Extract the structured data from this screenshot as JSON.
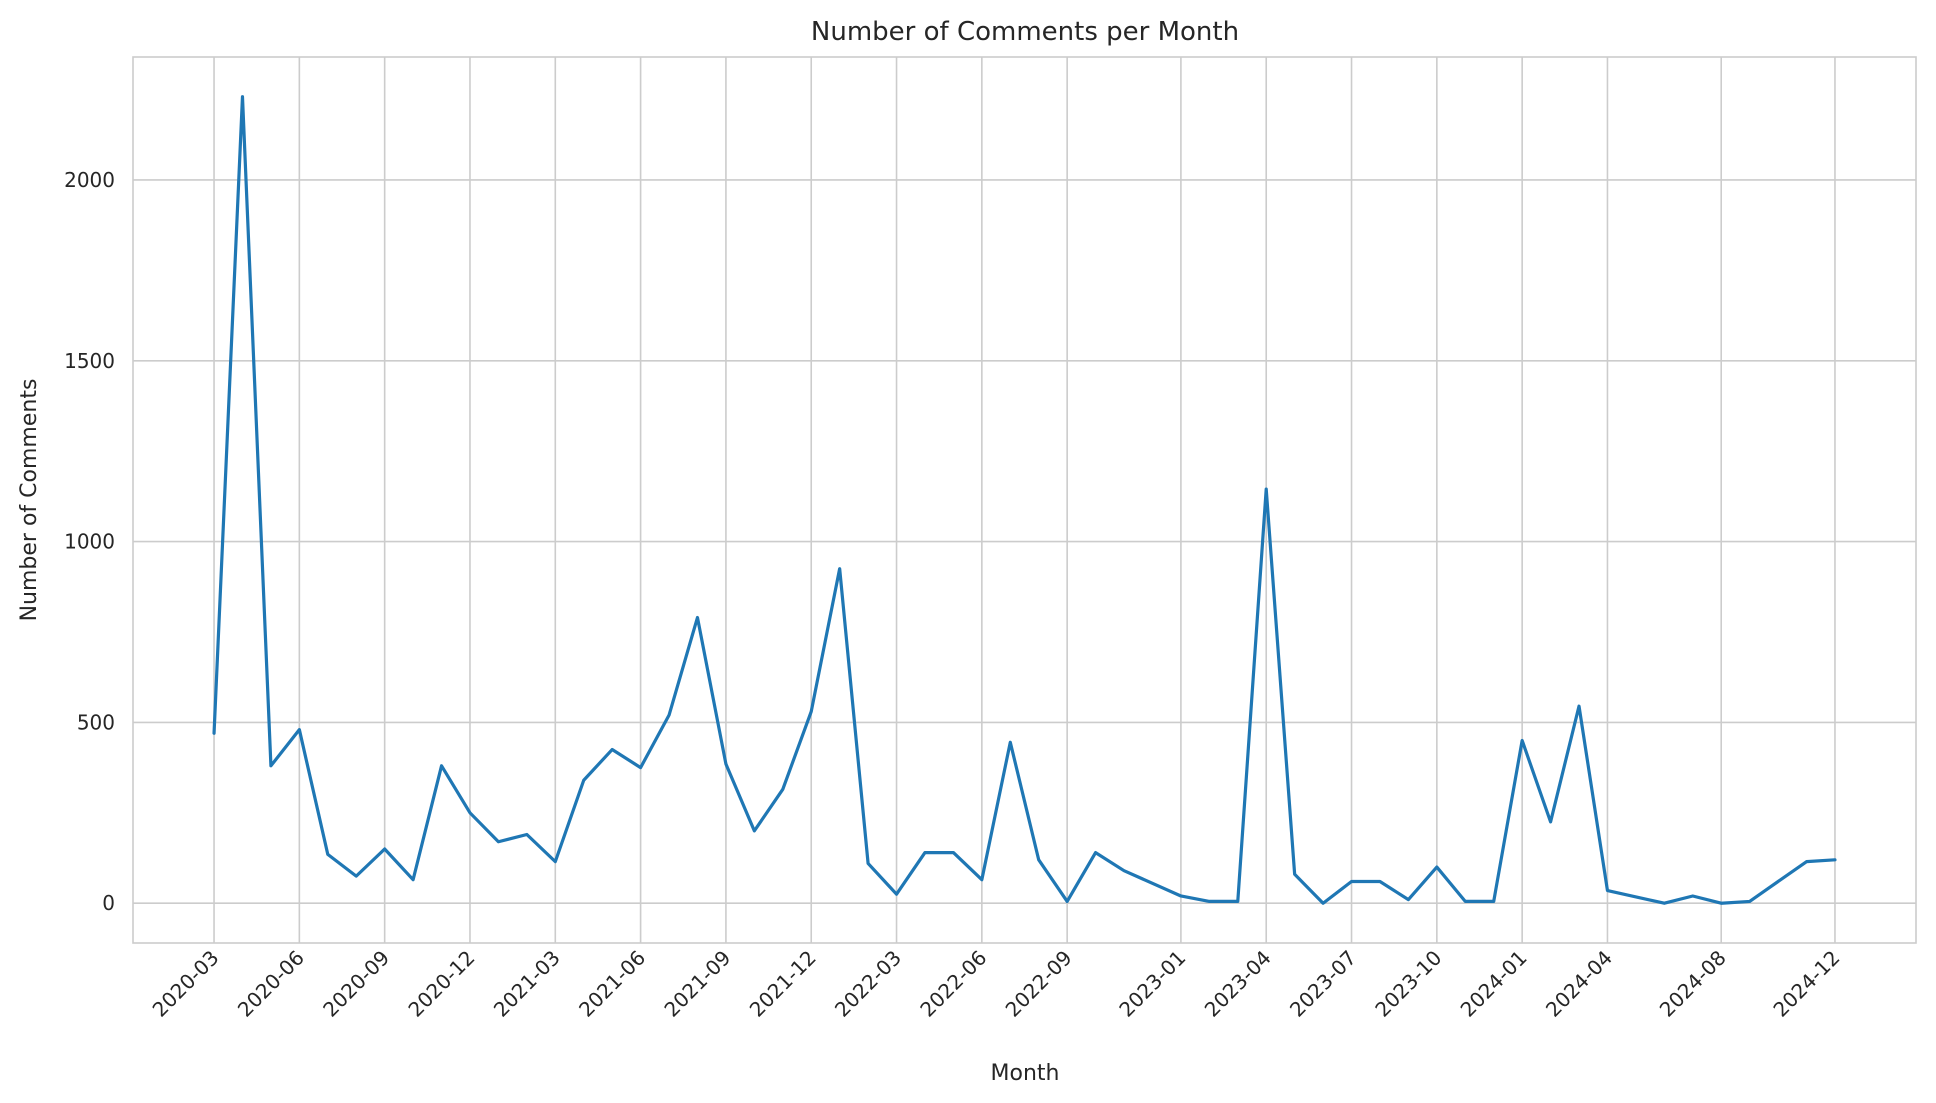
{
  "chart_data": {
    "type": "line",
    "title": "Number of Comments per Month",
    "xlabel": "Month",
    "ylabel": "Number of Comments",
    "x": [
      "2020-03",
      "2020-04",
      "2020-05",
      "2020-06",
      "2020-07",
      "2020-08",
      "2020-09",
      "2020-10",
      "2020-11",
      "2020-12",
      "2021-01",
      "2021-02",
      "2021-03",
      "2021-04",
      "2021-05",
      "2021-06",
      "2021-07",
      "2021-08",
      "2021-09",
      "2021-10",
      "2021-11",
      "2021-12",
      "2022-01",
      "2022-02",
      "2022-03",
      "2022-04",
      "2022-05",
      "2022-06",
      "2022-07",
      "2022-08",
      "2022-09",
      "2022-10",
      "2022-11",
      "2023-01",
      "2023-02",
      "2023-03",
      "2023-04",
      "2023-05",
      "2023-06",
      "2023-07",
      "2023-08",
      "2023-09",
      "2023-10",
      "2023-11",
      "2023-12",
      "2024-01",
      "2024-02",
      "2024-03",
      "2024-04",
      "2024-06",
      "2024-07",
      "2024-08",
      "2024-09",
      "2024-11",
      "2024-12"
    ],
    "series": [
      {
        "values": [
          470,
          2230,
          380,
          480,
          135,
          75,
          150,
          65,
          380,
          250,
          170,
          190,
          115,
          340,
          425,
          375,
          520,
          790,
          385,
          200,
          315,
          530,
          925,
          110,
          25,
          140,
          140,
          65,
          445,
          120,
          5,
          140,
          90,
          20,
          5,
          5,
          1145,
          80,
          0,
          60,
          60,
          10,
          100,
          5,
          5,
          450,
          225,
          545,
          35,
          0,
          20,
          0,
          5,
          115,
          120
        ]
      }
    ],
    "xticks": [
      "2020-03",
      "2020-06",
      "2020-09",
      "2020-12",
      "2021-03",
      "2021-06",
      "2021-09",
      "2021-12",
      "2022-03",
      "2022-06",
      "2022-09",
      "2023-01",
      "2023-04",
      "2023-07",
      "2023-10",
      "2024-01",
      "2024-04",
      "2024-08",
      "2024-12"
    ],
    "yticks": [
      0,
      500,
      1000,
      1500,
      2000
    ],
    "ylim": [
      -110,
      2340
    ],
    "grid": true,
    "line_color": "#1f77b4"
  }
}
